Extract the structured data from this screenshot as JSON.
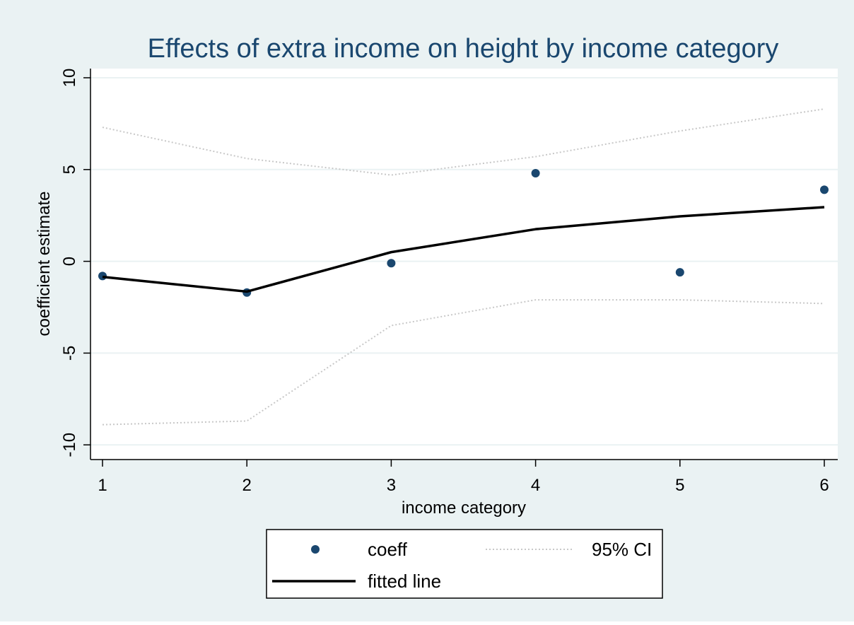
{
  "chart_data": {
    "type": "scatter",
    "title": "Effects of extra income on height by income category",
    "xlabel": "income category",
    "ylabel": "coefficient estimate",
    "xlim": [
      1,
      6
    ],
    "ylim": [
      -10.8,
      10.5
    ],
    "x_ticks": [
      1,
      2,
      3,
      4,
      5,
      6
    ],
    "y_ticks": [
      10,
      5,
      0,
      -5,
      -10
    ],
    "x_tick_labels": [
      "1",
      "2",
      "3",
      "4",
      "5",
      "6"
    ],
    "y_tick_labels": [
      "10",
      "5",
      "0",
      "-5",
      "-10"
    ],
    "grid": true,
    "legend_position": "bottom",
    "x": [
      1,
      2,
      3,
      4,
      5,
      6
    ],
    "series": [
      {
        "name": "coeff",
        "kind": "points",
        "values": [
          -0.8,
          -1.7,
          -0.1,
          4.8,
          -0.6,
          3.9
        ]
      },
      {
        "name": "95% CI",
        "kind": "dotted",
        "values": [
          7.3,
          5.6,
          4.7,
          5.7,
          7.1,
          8.3
        ]
      },
      {
        "name": "95% CI",
        "kind": "dotted",
        "values": [
          -8.9,
          -8.7,
          -3.5,
          -2.1,
          -2.1,
          -2.3
        ]
      },
      {
        "name": "fitted line",
        "kind": "solid",
        "values": [
          -0.85,
          -1.65,
          0.5,
          1.75,
          2.45,
          2.95
        ]
      }
    ],
    "legend": [
      {
        "label": "coeff",
        "marker": "point"
      },
      {
        "label": "95% CI",
        "marker": "dotted-line"
      },
      {
        "label": "fitted line",
        "marker": "solid-line"
      }
    ],
    "colors": {
      "outer_background": "#eaf2f3",
      "plot_background": "#ffffff",
      "grid": "#eaf2f3",
      "title": "#1a476f",
      "points": "#1a476f",
      "ci": "#c8c8c8",
      "fit": "#000000",
      "text": "#000000"
    }
  }
}
